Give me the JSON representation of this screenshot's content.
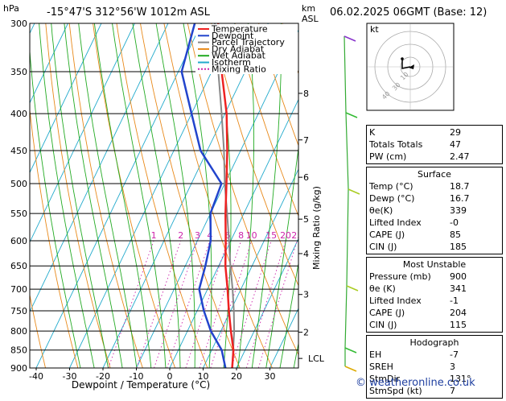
{
  "header": {
    "hpa_label": "hPa",
    "location": "-15°47'S  312°56'W  1012m  ASL",
    "km_label": "km",
    "asl_label": "ASL",
    "datetime": "06.02.2025  06GMT  (Base: 12)"
  },
  "chart_data": {
    "type": "line",
    "title": "",
    "xlabel": "Dewpoint / Temperature (°C)",
    "ylabel_right": "Mixing Ratio (g/kg)",
    "xlim": [
      -42,
      36
    ],
    "ylim_hpa": [
      900,
      300
    ],
    "pressure_ticks": [
      300,
      350,
      400,
      450,
      500,
      550,
      600,
      650,
      700,
      750,
      800,
      850,
      900
    ],
    "temp_ticks": [
      -40,
      -30,
      -20,
      -10,
      0,
      10,
      20,
      30
    ],
    "km_ticks": [
      {
        "label": "8",
        "hpa": 375
      },
      {
        "label": "7",
        "hpa": 435
      },
      {
        "label": "6",
        "hpa": 490
      },
      {
        "label": "5",
        "hpa": 560
      },
      {
        "label": "4",
        "hpa": 625
      },
      {
        "label": "3",
        "hpa": 712
      },
      {
        "label": "2",
        "hpa": 803
      },
      {
        "label": "LCL",
        "hpa": 873
      }
    ],
    "mixing_ratio_labels": [
      "1",
      "2",
      "3",
      "4",
      "6",
      "8",
      "10",
      "15",
      "20",
      "25"
    ],
    "mixing_ratio_values": [
      1,
      2,
      3,
      4,
      6,
      8,
      10,
      15,
      20,
      25
    ],
    "legend": [
      {
        "name": "Temperature",
        "color": "#ee2222",
        "style": "solid"
      },
      {
        "name": "Dewpoint",
        "color": "#2244cc",
        "style": "solid"
      },
      {
        "name": "Parcel Trajectory",
        "color": "#888888",
        "style": "solid"
      },
      {
        "name": "Dry Adiabat",
        "color": "#e8891a",
        "style": "solid"
      },
      {
        "name": "Wet Adiabat",
        "color": "#22aa22",
        "style": "solid"
      },
      {
        "name": "Isotherm",
        "color": "#22aacc",
        "style": "solid"
      },
      {
        "name": "Mixing Ratio",
        "color": "#cc22aa",
        "style": "dotted"
      }
    ],
    "series": [
      {
        "name": "Temperature",
        "points": [
          [
            900,
            18.7
          ],
          [
            850,
            16.5
          ],
          [
            800,
            13
          ],
          [
            750,
            9.5
          ],
          [
            700,
            6
          ],
          [
            650,
            2
          ],
          [
            600,
            -1.5
          ],
          [
            550,
            -5.5
          ],
          [
            500,
            -9.5
          ],
          [
            450,
            -14
          ],
          [
            400,
            -19.5
          ],
          [
            350,
            -27
          ],
          [
            300,
            -35
          ]
        ]
      },
      {
        "name": "Dewpoint",
        "points": [
          [
            900,
            16.7
          ],
          [
            850,
            13
          ],
          [
            800,
            7
          ],
          [
            750,
            2
          ],
          [
            700,
            -2.5
          ],
          [
            650,
            -4
          ],
          [
            600,
            -6
          ],
          [
            550,
            -10
          ],
          [
            500,
            -11
          ],
          [
            450,
            -22
          ],
          [
            400,
            -30
          ],
          [
            350,
            -39
          ],
          [
            300,
            -42
          ]
        ]
      },
      {
        "name": "Parcel Trajectory",
        "points": [
          [
            900,
            18.7
          ],
          [
            873,
            17.5
          ],
          [
            800,
            14
          ],
          [
            750,
            11
          ],
          [
            700,
            7.5
          ],
          [
            650,
            3.5
          ],
          [
            600,
            -0.5
          ],
          [
            550,
            -5
          ],
          [
            500,
            -10
          ],
          [
            450,
            -15
          ],
          [
            400,
            -21
          ],
          [
            350,
            -28
          ],
          [
            300,
            -36
          ]
        ]
      }
    ]
  },
  "hodograph": {
    "label": "kt",
    "ring_labels": [
      "10",
      "30",
      "40"
    ]
  },
  "indices": [
    {
      "label": "K",
      "value": "29"
    },
    {
      "label": "Totals Totals",
      "value": "47"
    },
    {
      "label": "PW (cm)",
      "value": "2.47"
    }
  ],
  "surface": {
    "title": "Surface",
    "rows": [
      {
        "label": "Temp (°C)",
        "value": "18.7"
      },
      {
        "label": "Dewp (°C)",
        "value": "16.7"
      },
      {
        "label": "θe(K)",
        "value": "339"
      },
      {
        "label": "Lifted Index",
        "value": "-0"
      },
      {
        "label": "CAPE (J)",
        "value": "85"
      },
      {
        "label": "CIN (J)",
        "value": "185"
      }
    ]
  },
  "most_unstable": {
    "title": "Most Unstable",
    "rows": [
      {
        "label": "Pressure (mb)",
        "value": "900"
      },
      {
        "label": "θe (K)",
        "value": "341"
      },
      {
        "label": "Lifted Index",
        "value": "-1"
      },
      {
        "label": "CAPE (J)",
        "value": "204"
      },
      {
        "label": "CIN (J)",
        "value": "115"
      }
    ]
  },
  "hodograph_table": {
    "title": "Hodograph",
    "rows": [
      {
        "label": "EH",
        "value": "-7"
      },
      {
        "label": "SREH",
        "value": "3"
      },
      {
        "label": "StmDir",
        "value": "131°"
      },
      {
        "label": "StmSpd (kt)",
        "value": "7"
      }
    ]
  },
  "copyright": "© weatheronline.co.uk"
}
